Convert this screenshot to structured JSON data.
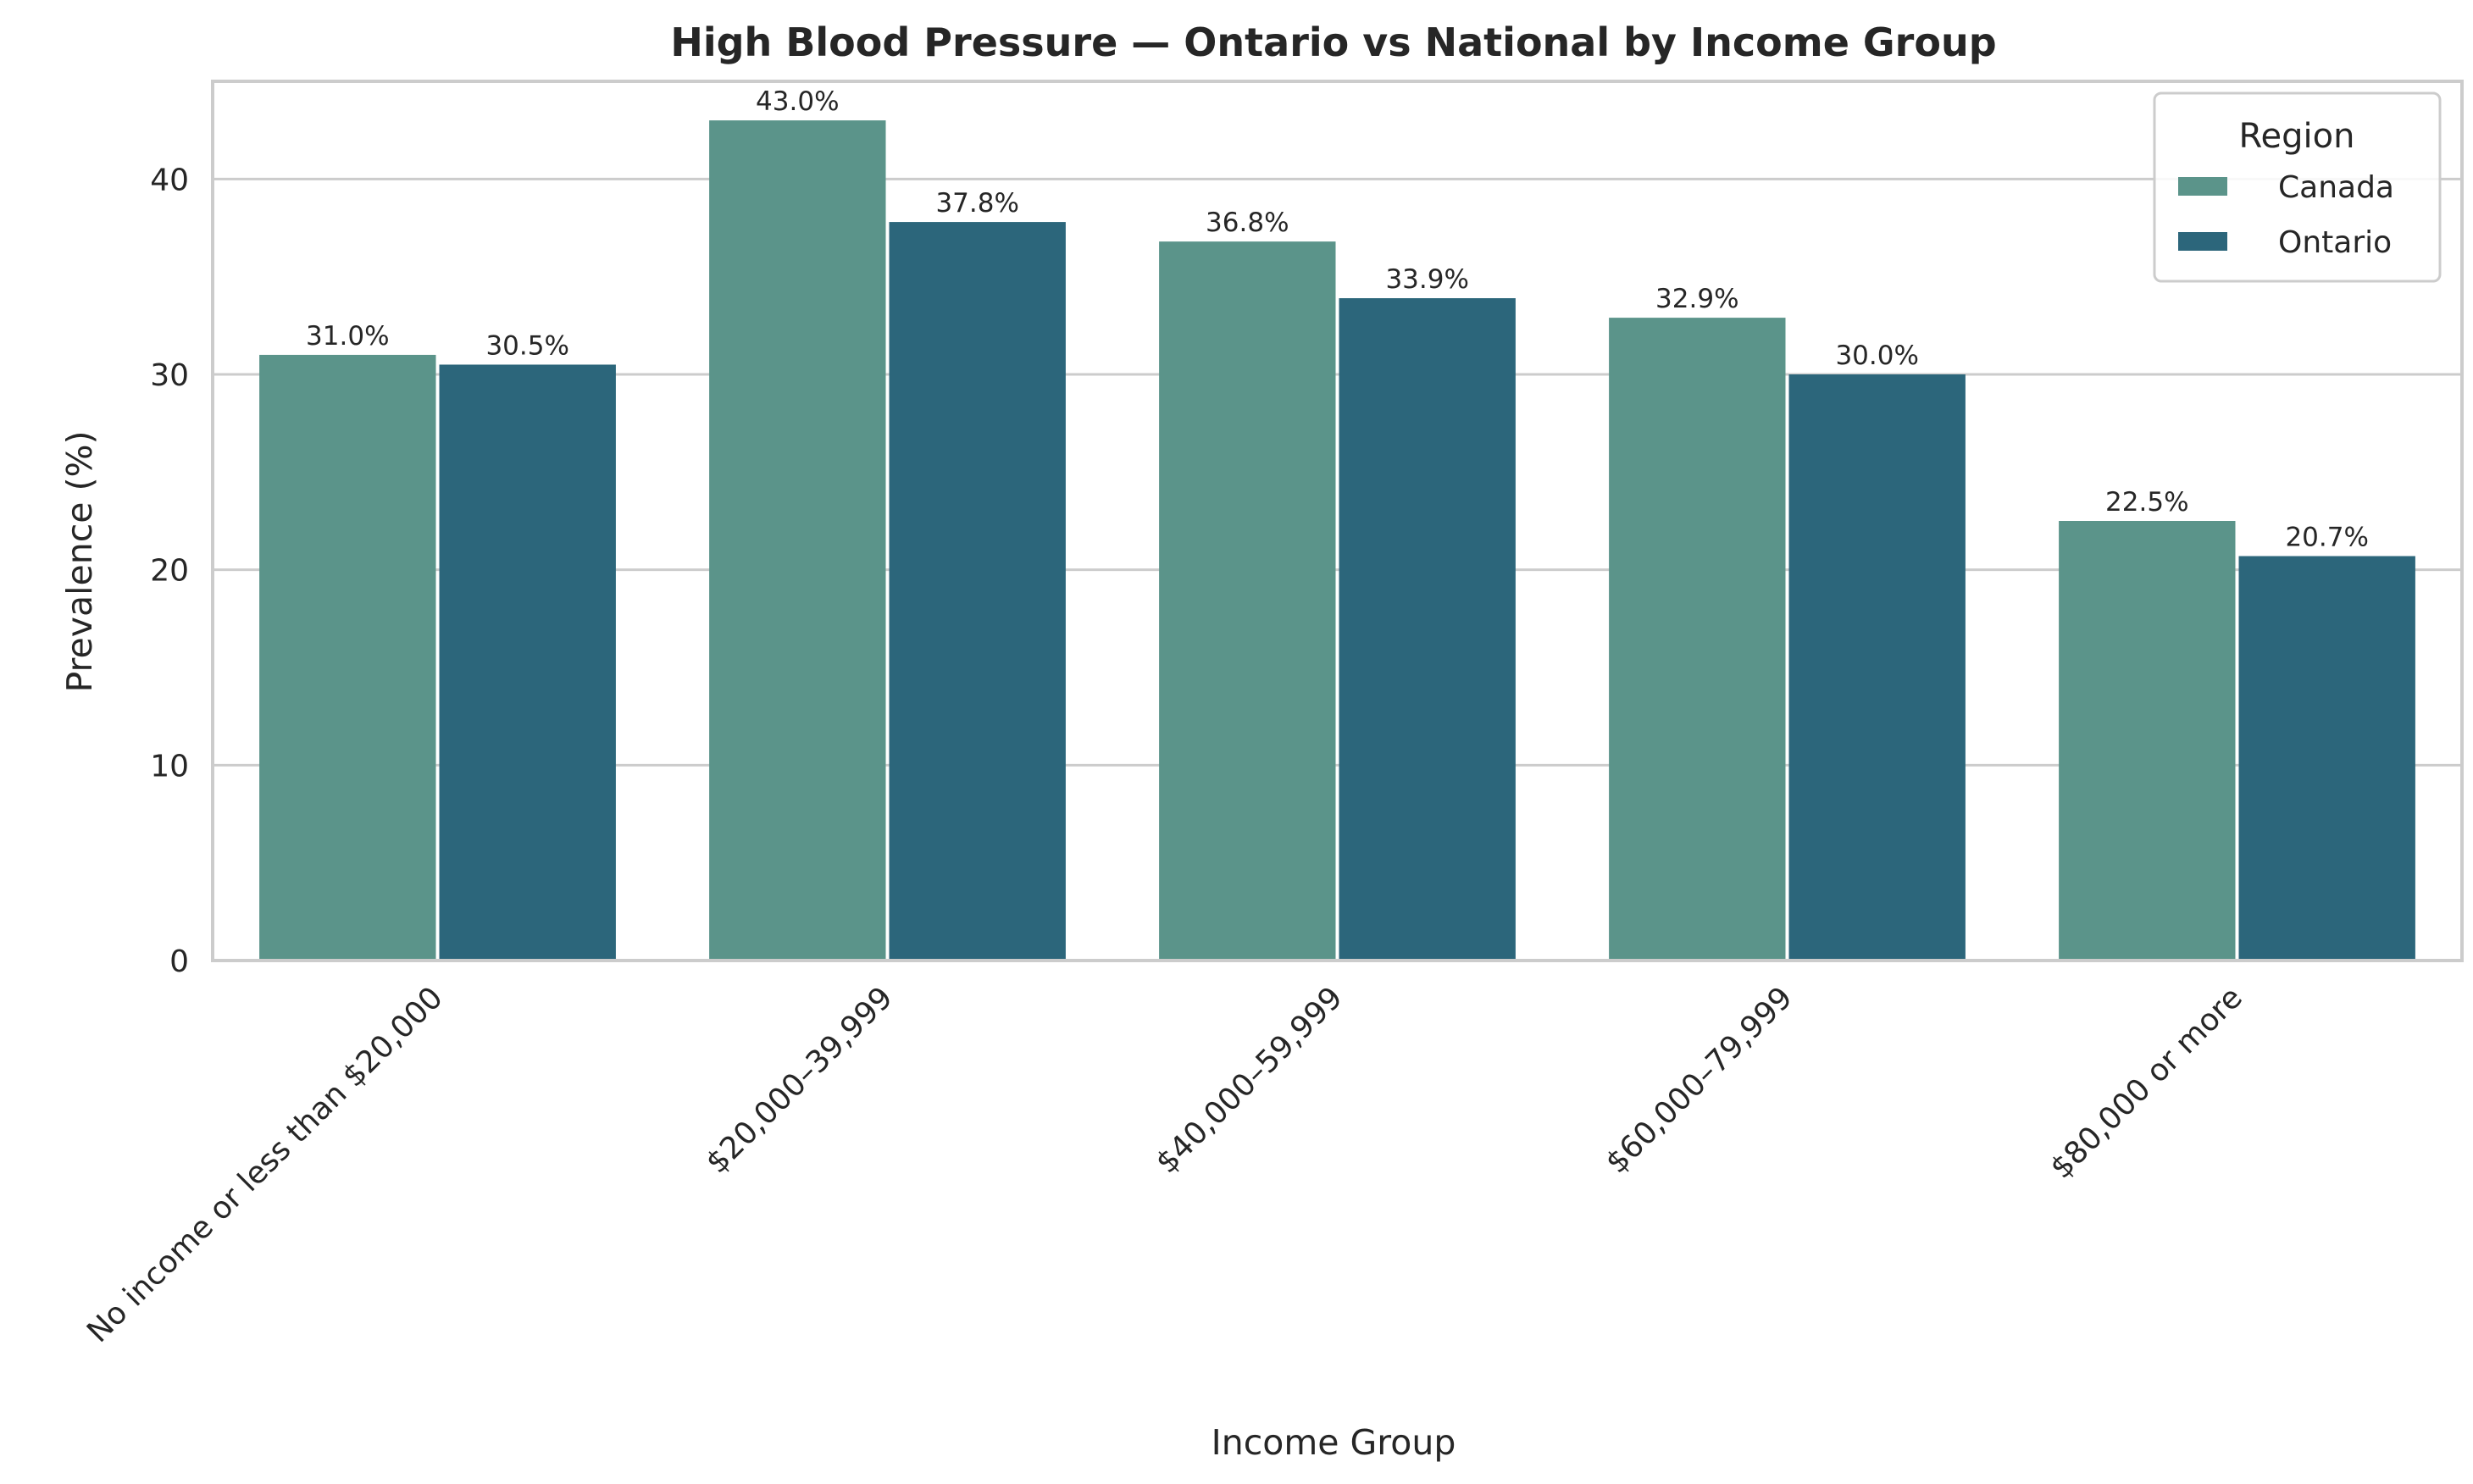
{
  "chart_data": {
    "type": "bar",
    "title": "High Blood Pressure — Ontario vs National by Income Group",
    "xlabel": "Income Group",
    "ylabel": "Prevalence (%)",
    "categories": [
      "No income or less than $20,000",
      "$20,000–39,999",
      "$40,000–59,999",
      "$60,000–79,999",
      "$80,000 or more"
    ],
    "series": [
      {
        "name": "Canada",
        "color": "#5b948a",
        "values": [
          31.0,
          43.0,
          36.8,
          32.9,
          22.5
        ]
      },
      {
        "name": "Ontario",
        "color": "#2c667b",
        "values": [
          30.5,
          37.8,
          33.9,
          30.0,
          20.7
        ]
      }
    ],
    "value_labels": [
      [
        "31.0%",
        "43.0%",
        "36.8%",
        "32.9%",
        "22.5%"
      ],
      [
        "30.5%",
        "37.8%",
        "33.9%",
        "30.0%",
        "20.7%"
      ]
    ],
    "ylim": [
      0,
      45
    ],
    "yticks": [
      "0",
      "10",
      "20",
      "30",
      "40"
    ],
    "ytick_values": [
      0,
      10,
      20,
      30,
      40
    ],
    "grid": "horizontal",
    "legend": {
      "title": "Region",
      "placement": "top-right"
    }
  }
}
